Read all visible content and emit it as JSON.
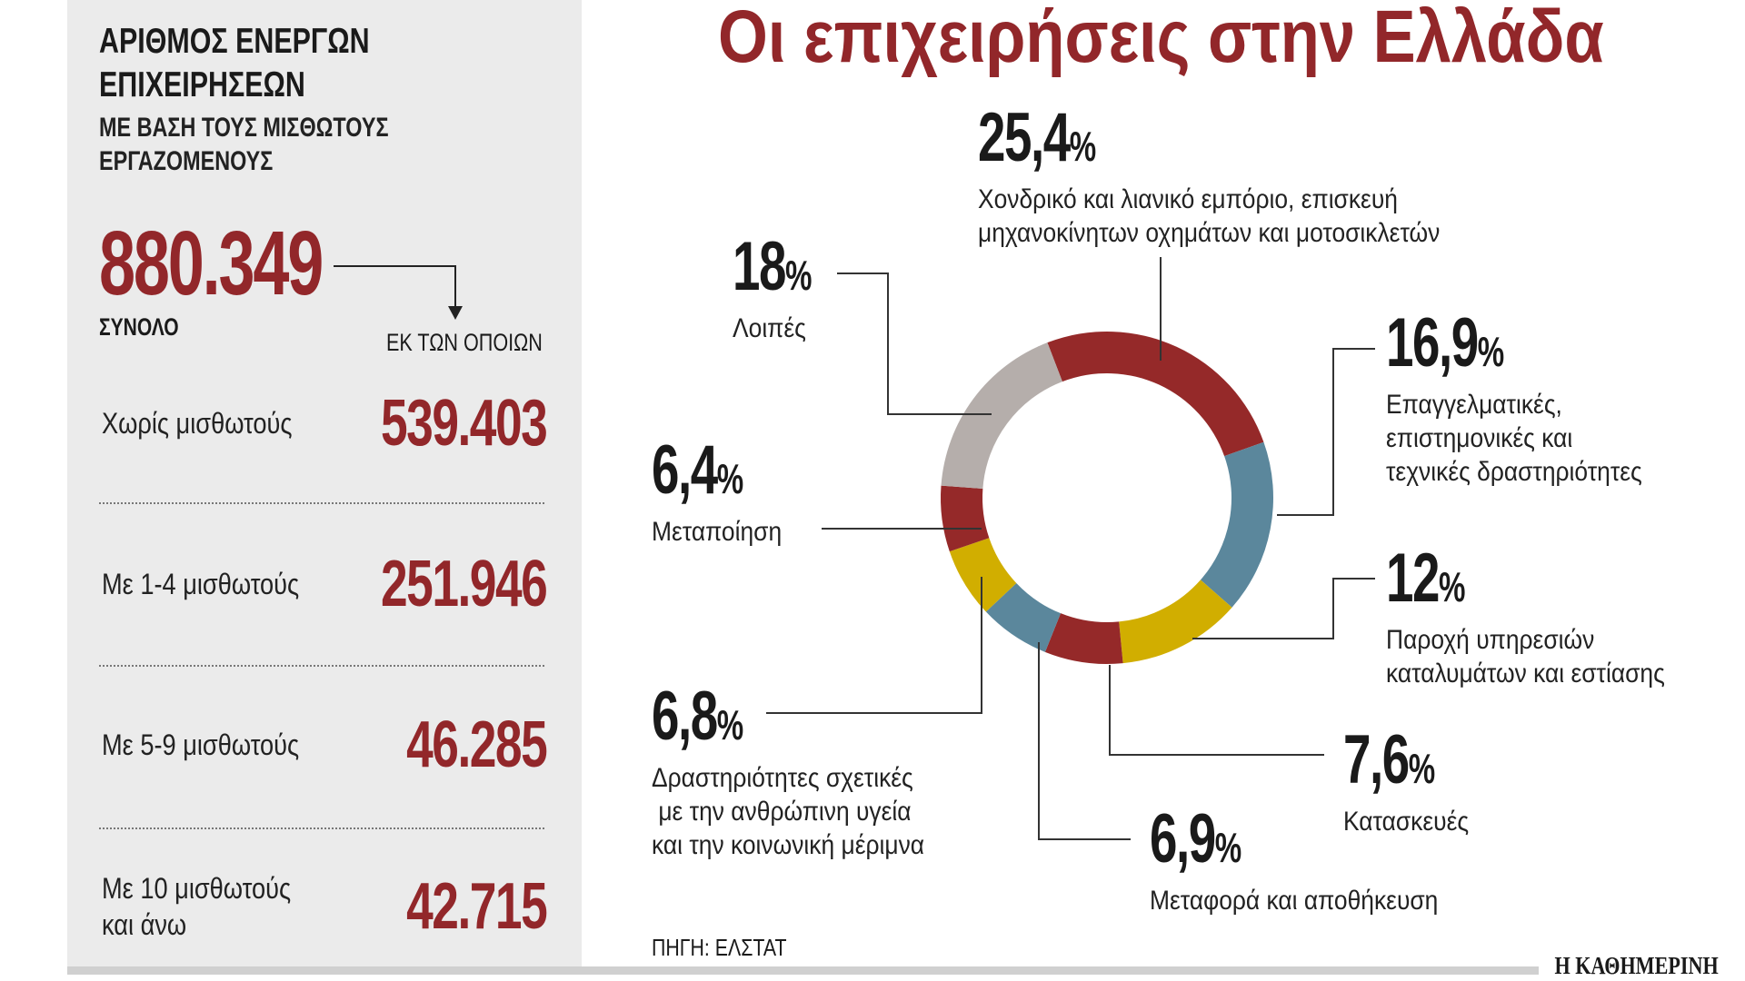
{
  "panel": {
    "heading": [
      "ΑΡΙΘΜΟΣ ΕΝΕΡΓΩΝ",
      "ΕΠΙΧΕΙΡΗΣΕΩΝ"
    ],
    "subheading": [
      "ΜΕ ΒΑΣΗ ΤΟΥΣ ΜΙΣΘΩΤΟΥΣ",
      "ΕΡΓΑΖΟΜΕΝΟΥΣ"
    ],
    "total_value": "880.349",
    "total_label": "ΣΥΝΟΛΟ",
    "of_which_label": "ΕΚ ΤΩΝ ΟΠΟΙΩΝ",
    "rows": [
      {
        "label": [
          "Χωρίς μισθωτούς"
        ],
        "value": "539.403"
      },
      {
        "label": [
          "Με 1-4 μισθωτούς"
        ],
        "value": "251.946"
      },
      {
        "label": [
          "Με 5-9 μισθωτούς"
        ],
        "value": "46.285"
      },
      {
        "label": [
          "Με 10 μισθωτούς",
          "και άνω"
        ],
        "value": "42.715"
      }
    ]
  },
  "chart_data": {
    "type": "pie",
    "donut": true,
    "title": "Οι επιχειρήσεις στην Ελλάδα",
    "start_angle_deg": -21,
    "percent_sign": "%",
    "slices": [
      {
        "display": "25,4",
        "value": 25.4,
        "label": [
          "Χονδρικό και λιανικό εμπόριο, επισκευή",
          "μηχανοκίνητων οχημάτων και μοτοσικλετών"
        ],
        "color": "#952929"
      },
      {
        "display": "16,9",
        "value": 16.9,
        "label": [
          "Επαγγελματικές,",
          "επιστημονικές και",
          "τεχνικές δραστηριότητες"
        ],
        "color": "#5b879c"
      },
      {
        "display": "12",
        "value": 12,
        "label": [
          "Παροχή υπηρεσιών",
          "καταλυμάτων και εστίασης"
        ],
        "color": "#d1ae00"
      },
      {
        "display": "7,6",
        "value": 7.6,
        "label": [
          "Κατασκευές"
        ],
        "color": "#952929"
      },
      {
        "display": "6,9",
        "value": 6.9,
        "label": [
          "Μεταφορά και αποθήκευση"
        ],
        "color": "#5b879c"
      },
      {
        "display": "6,8",
        "value": 6.8,
        "label": [
          "Δραστηριότητες σχετικές",
          " με την ανθρώπινη υγεία",
          "και την κοινωνική μέριμνα"
        ],
        "color": "#d1ae00"
      },
      {
        "display": "6,4",
        "value": 6.4,
        "label": [
          "Μεταποίηση"
        ],
        "color": "#952929"
      },
      {
        "display": "18",
        "value": 18,
        "label": [
          "Λοιπές"
        ],
        "color": "#b5aeab"
      }
    ]
  },
  "footer": {
    "source": "ΠΗΓΗ: ΕΛΣΤΑΤ",
    "publisher": "Η ΚΑΘΗΜΕΡΙΝΗ"
  }
}
